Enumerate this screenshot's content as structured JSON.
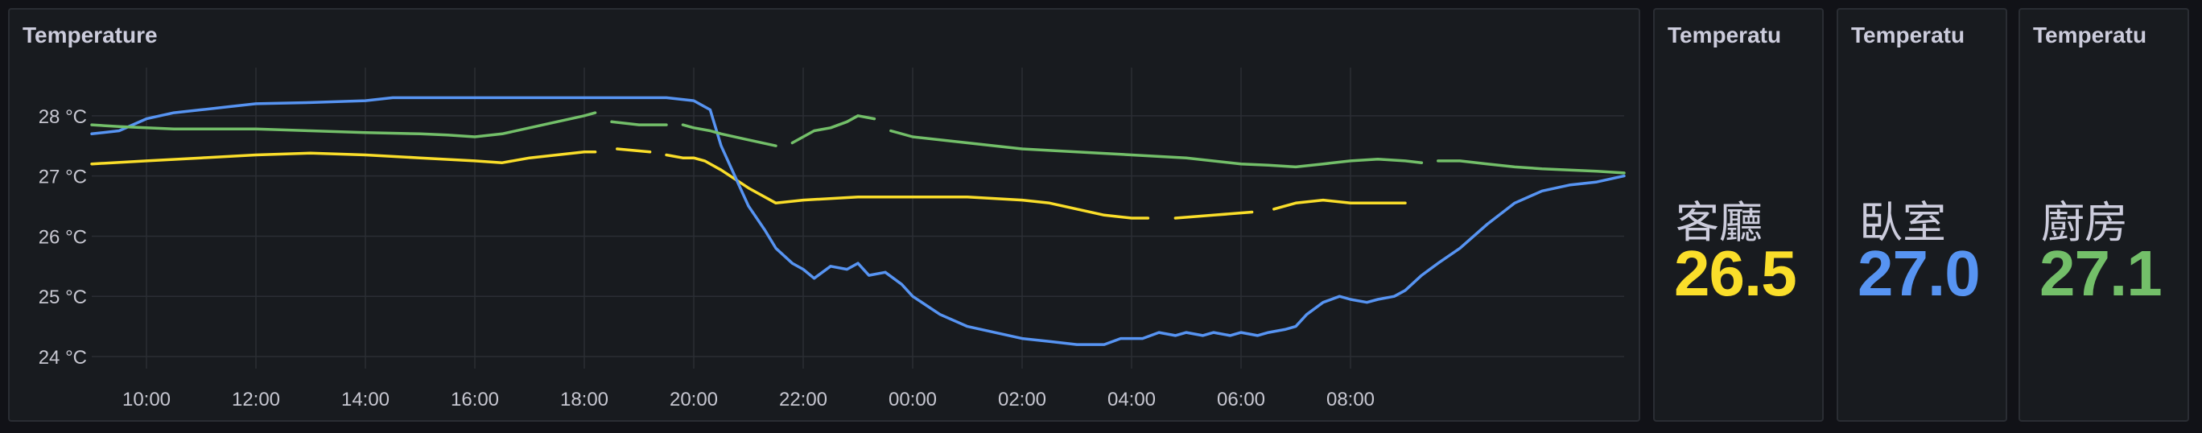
{
  "chart_panel": {
    "title": "Temperature"
  },
  "stats": [
    {
      "title": "Temperatu",
      "label": "客廳",
      "value": "26.5",
      "color": "#fade2a"
    },
    {
      "title": "Temperatu",
      "label": "臥室",
      "value": "27.0",
      "color": "#5794f2"
    },
    {
      "title": "Temperatu",
      "label": "廚房",
      "value": "27.1",
      "color": "#73bf69"
    }
  ],
  "chart_data": {
    "type": "line",
    "title": "Temperature",
    "xlabel": "",
    "ylabel": "",
    "x_ticks": [
      "10:00",
      "12:00",
      "14:00",
      "16:00",
      "18:00",
      "20:00",
      "22:00",
      "00:00",
      "02:00",
      "04:00",
      "06:00",
      "08:00"
    ],
    "y_ticks": [
      "24 °C",
      "25 °C",
      "26 °C",
      "27 °C",
      "28 °C"
    ],
    "xlim": [
      "09:00",
      "09:00 (+1d)"
    ],
    "ylim": [
      23.8,
      28.8
    ],
    "x_unit": "hours",
    "grid": true,
    "legend": "none",
    "series": [
      {
        "color": "#fade2a",
        "points": [
          [
            9.0,
            27.2
          ],
          [
            10.0,
            27.25
          ],
          [
            11.0,
            27.3
          ],
          [
            12.0,
            27.35
          ],
          [
            13.0,
            27.38
          ],
          [
            14.0,
            27.35
          ],
          [
            15.0,
            27.3
          ],
          [
            16.0,
            27.25
          ],
          [
            16.5,
            27.22
          ],
          [
            17.0,
            27.3
          ],
          [
            17.5,
            27.35
          ],
          [
            18.0,
            27.4
          ],
          [
            18.2,
            27.4
          ],
          [
            null,
            null
          ],
          [
            18.6,
            27.45
          ],
          [
            19.2,
            27.4
          ],
          [
            null,
            null
          ],
          [
            19.5,
            27.35
          ],
          [
            19.8,
            27.3
          ],
          [
            20.0,
            27.3
          ],
          [
            20.2,
            27.25
          ],
          [
            20.5,
            27.1
          ],
          [
            21.0,
            26.8
          ],
          [
            21.5,
            26.55
          ],
          [
            22.0,
            26.6
          ],
          [
            23.0,
            26.65
          ],
          [
            24.0,
            26.65
          ],
          [
            25.0,
            26.65
          ],
          [
            26.0,
            26.6
          ],
          [
            26.5,
            26.55
          ],
          [
            27.0,
            26.45
          ],
          [
            27.5,
            26.35
          ],
          [
            28.0,
            26.3
          ],
          [
            28.3,
            26.3
          ],
          [
            null,
            null
          ],
          [
            28.8,
            26.3
          ],
          [
            29.5,
            26.35
          ],
          [
            30.2,
            26.4
          ],
          [
            null,
            null
          ],
          [
            30.6,
            26.45
          ],
          [
            31.0,
            26.55
          ],
          [
            31.5,
            26.6
          ],
          [
            32.0,
            26.55
          ],
          [
            33.0,
            26.55
          ]
        ]
      },
      {
        "color": "#5794f2",
        "points": [
          [
            9.0,
            27.7
          ],
          [
            9.5,
            27.75
          ],
          [
            10.0,
            27.95
          ],
          [
            10.5,
            28.05
          ],
          [
            11.0,
            28.1
          ],
          [
            11.5,
            28.15
          ],
          [
            12.0,
            28.2
          ],
          [
            13.0,
            28.22
          ],
          [
            14.0,
            28.25
          ],
          [
            14.5,
            28.3
          ],
          [
            15.0,
            28.3
          ],
          [
            16.0,
            28.3
          ],
          [
            17.0,
            28.3
          ],
          [
            18.0,
            28.3
          ],
          [
            19.0,
            28.3
          ],
          [
            19.5,
            28.3
          ],
          [
            20.0,
            28.25
          ],
          [
            20.3,
            28.1
          ],
          [
            20.5,
            27.5
          ],
          [
            20.8,
            26.9
          ],
          [
            21.0,
            26.5
          ],
          [
            21.3,
            26.1
          ],
          [
            21.5,
            25.8
          ],
          [
            21.8,
            25.55
          ],
          [
            22.0,
            25.45
          ],
          [
            22.2,
            25.3
          ],
          [
            22.5,
            25.5
          ],
          [
            22.8,
            25.45
          ],
          [
            23.0,
            25.55
          ],
          [
            23.2,
            25.35
          ],
          [
            23.5,
            25.4
          ],
          [
            23.8,
            25.2
          ],
          [
            24.0,
            25.0
          ],
          [
            24.5,
            24.7
          ],
          [
            25.0,
            24.5
          ],
          [
            25.5,
            24.4
          ],
          [
            26.0,
            24.3
          ],
          [
            26.5,
            24.25
          ],
          [
            27.0,
            24.2
          ],
          [
            27.5,
            24.2
          ],
          [
            27.8,
            24.3
          ],
          [
            28.2,
            24.3
          ],
          [
            28.5,
            24.4
          ],
          [
            28.8,
            24.35
          ],
          [
            29.0,
            24.4
          ],
          [
            29.3,
            24.35
          ],
          [
            29.5,
            24.4
          ],
          [
            29.8,
            24.35
          ],
          [
            30.0,
            24.4
          ],
          [
            30.3,
            24.35
          ],
          [
            30.5,
            24.4
          ],
          [
            30.8,
            24.45
          ],
          [
            31.0,
            24.5
          ],
          [
            31.2,
            24.7
          ],
          [
            31.5,
            24.9
          ],
          [
            31.8,
            25.0
          ],
          [
            32.0,
            24.95
          ],
          [
            32.3,
            24.9
          ],
          [
            32.5,
            24.95
          ],
          [
            32.8,
            25.0
          ],
          [
            33.0,
            25.1
          ],
          [
            33.3,
            25.35
          ],
          [
            33.6,
            25.55
          ],
          [
            34.0,
            25.8
          ],
          [
            34.5,
            26.2
          ],
          [
            35.0,
            26.55
          ],
          [
            35.5,
            26.75
          ],
          [
            36.0,
            26.85
          ],
          [
            36.5,
            26.9
          ],
          [
            37.0,
            27.0
          ]
        ]
      },
      {
        "color": "#73bf69",
        "points": [
          [
            9.0,
            27.85
          ],
          [
            9.5,
            27.82
          ],
          [
            10.0,
            27.8
          ],
          [
            10.5,
            27.78
          ],
          [
            11.0,
            27.78
          ],
          [
            12.0,
            27.78
          ],
          [
            13.0,
            27.75
          ],
          [
            14.0,
            27.72
          ],
          [
            15.0,
            27.7
          ],
          [
            15.5,
            27.68
          ],
          [
            16.0,
            27.65
          ],
          [
            16.5,
            27.7
          ],
          [
            17.0,
            27.8
          ],
          [
            17.5,
            27.9
          ],
          [
            18.0,
            28.0
          ],
          [
            18.2,
            28.05
          ],
          [
            null,
            null
          ],
          [
            18.5,
            27.9
          ],
          [
            19.0,
            27.85
          ],
          [
            19.5,
            27.85
          ],
          [
            null,
            null
          ],
          [
            19.8,
            27.85
          ],
          [
            20.0,
            27.8
          ],
          [
            20.3,
            27.75
          ],
          [
            20.5,
            27.7
          ],
          [
            21.0,
            27.6
          ],
          [
            21.5,
            27.5
          ],
          [
            null,
            null
          ],
          [
            21.8,
            27.55
          ],
          [
            22.2,
            27.75
          ],
          [
            22.5,
            27.8
          ],
          [
            22.8,
            27.9
          ],
          [
            23.0,
            28.0
          ],
          [
            23.3,
            27.95
          ],
          [
            null,
            null
          ],
          [
            23.6,
            27.75
          ],
          [
            24.0,
            27.65
          ],
          [
            25.0,
            27.55
          ],
          [
            26.0,
            27.45
          ],
          [
            27.0,
            27.4
          ],
          [
            28.0,
            27.35
          ],
          [
            29.0,
            27.3
          ],
          [
            30.0,
            27.2
          ],
          [
            30.5,
            27.18
          ],
          [
            31.0,
            27.15
          ],
          [
            31.5,
            27.2
          ],
          [
            32.0,
            27.25
          ],
          [
            32.5,
            27.28
          ],
          [
            33.0,
            27.25
          ],
          [
            33.3,
            27.22
          ],
          [
            null,
            null
          ],
          [
            33.6,
            27.25
          ],
          [
            34.0,
            27.25
          ],
          [
            34.5,
            27.2
          ],
          [
            35.0,
            27.15
          ],
          [
            35.5,
            27.12
          ],
          [
            36.0,
            27.1
          ],
          [
            36.5,
            27.08
          ],
          [
            37.0,
            27.05
          ]
        ]
      }
    ]
  }
}
